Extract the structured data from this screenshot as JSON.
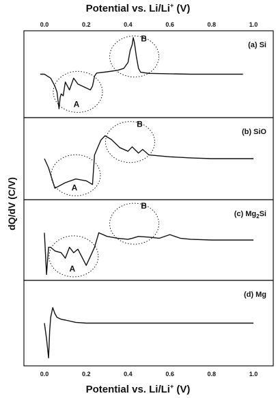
{
  "chart_data": {
    "type": "line",
    "top_axis_label": "Potential vs. Li/Li+ (V)",
    "bottom_axis_label": "Potential vs. Li/Li+ (V)",
    "ylabel": "dQ/dV (C/V)",
    "xlim": [
      0.0,
      1.0
    ],
    "x_ticks": [
      0.0,
      0.2,
      0.4,
      0.6,
      0.8,
      1.0
    ],
    "x_tick_labels": [
      "0.0",
      "0.2",
      "0.4",
      "0.6",
      "0.8",
      "1.0"
    ],
    "y_ticks": "none",
    "grid": false,
    "panels": [
      {
        "label": "(a) Si",
        "ylim": [
          -1.0,
          1.0
        ],
        "baseline": 0.0,
        "x": [
          -0.02,
          0.0,
          0.03,
          0.05,
          0.06,
          0.07,
          0.075,
          0.08,
          0.09,
          0.1,
          0.12,
          0.14,
          0.16,
          0.18,
          0.2,
          0.22,
          0.23,
          0.24,
          0.25,
          0.3,
          0.35,
          0.38,
          0.4,
          0.41,
          0.42,
          0.425,
          0.43,
          0.44,
          0.45,
          0.46,
          0.5,
          0.6,
          0.7,
          0.8,
          0.9,
          0.95
        ],
        "values": [
          0.0,
          0.0,
          -0.1,
          -0.3,
          -0.45,
          -0.88,
          -0.6,
          -0.5,
          -0.55,
          -0.2,
          -0.4,
          -0.1,
          -0.25,
          -0.3,
          -0.35,
          -0.4,
          -0.3,
          -0.05,
          0.03,
          0.06,
          0.1,
          0.15,
          0.3,
          0.6,
          0.75,
          0.93,
          0.82,
          0.45,
          0.15,
          0.05,
          0.02,
          0.01,
          0.0,
          0.0,
          0.0,
          0.0
        ],
        "annotations": [
          {
            "text": "A",
            "x": 0.16,
            "region": "cathodic"
          },
          {
            "text": "B",
            "x": 0.43,
            "region": "anodic"
          }
        ]
      },
      {
        "label": "(b) SiO",
        "ylim": [
          -1.0,
          1.0
        ],
        "baseline": 0.0,
        "x": [
          0.0,
          0.02,
          0.05,
          0.1,
          0.15,
          0.2,
          0.23,
          0.24,
          0.27,
          0.29,
          0.32,
          0.36,
          0.4,
          0.42,
          0.45,
          0.47,
          0.5,
          0.6,
          0.7,
          0.8,
          0.9,
          1.0
        ],
        "values": [
          0.0,
          -0.25,
          -0.8,
          -0.65,
          -0.55,
          -0.6,
          -0.7,
          0.1,
          0.5,
          0.62,
          0.52,
          0.3,
          0.2,
          0.32,
          0.15,
          0.25,
          0.1,
          0.05,
          0.02,
          0.0,
          0.0,
          0.0
        ],
        "annotations": [
          {
            "text": "A",
            "x": 0.15,
            "region": "cathodic"
          },
          {
            "text": "B",
            "x": 0.41,
            "region": "anodic"
          }
        ]
      },
      {
        "label": "(c) Mg2Si",
        "ylim": [
          -1.0,
          1.0
        ],
        "baseline": 0.0,
        "x": [
          0.0,
          0.01,
          0.02,
          0.03,
          0.05,
          0.08,
          0.1,
          0.12,
          0.14,
          0.16,
          0.2,
          0.22,
          0.24,
          0.26,
          0.3,
          0.35,
          0.4,
          0.42,
          0.45,
          0.5,
          0.55,
          0.6,
          0.65,
          0.7,
          0.8,
          0.9,
          1.0
        ],
        "values": [
          0.2,
          -0.95,
          -0.2,
          -0.2,
          -0.3,
          -0.35,
          -0.5,
          -0.2,
          -0.35,
          -0.25,
          -0.7,
          -0.45,
          -0.2,
          0.2,
          0.1,
          0.05,
          0.02,
          0.05,
          0.1,
          0.08,
          0.05,
          0.15,
          0.05,
          0.02,
          0.0,
          0.0,
          0.0
        ],
        "anodic_peaks_x": [
          0.03,
          0.06,
          0.12,
          0.19,
          0.26,
          0.61
        ],
        "annotations": [
          {
            "text": "A",
            "x": 0.14,
            "region": "cathodic"
          },
          {
            "text": "B",
            "x": 0.43,
            "region": "anodic"
          }
        ]
      },
      {
        "label": "(d) Mg",
        "ylim": [
          -1.0,
          1.0
        ],
        "baseline": 0.0,
        "x": [
          0.0,
          0.01,
          0.02,
          0.025,
          0.03,
          0.04,
          0.05,
          0.06,
          0.08,
          0.1,
          0.15,
          0.2,
          0.4,
          0.6,
          0.8,
          1.0
        ],
        "values": [
          0.0,
          -0.4,
          -0.9,
          -0.2,
          0.15,
          0.4,
          0.25,
          0.15,
          0.1,
          0.08,
          0.02,
          0.0,
          0.0,
          0.0,
          0.0,
          0.0
        ],
        "annotations": []
      }
    ]
  }
}
